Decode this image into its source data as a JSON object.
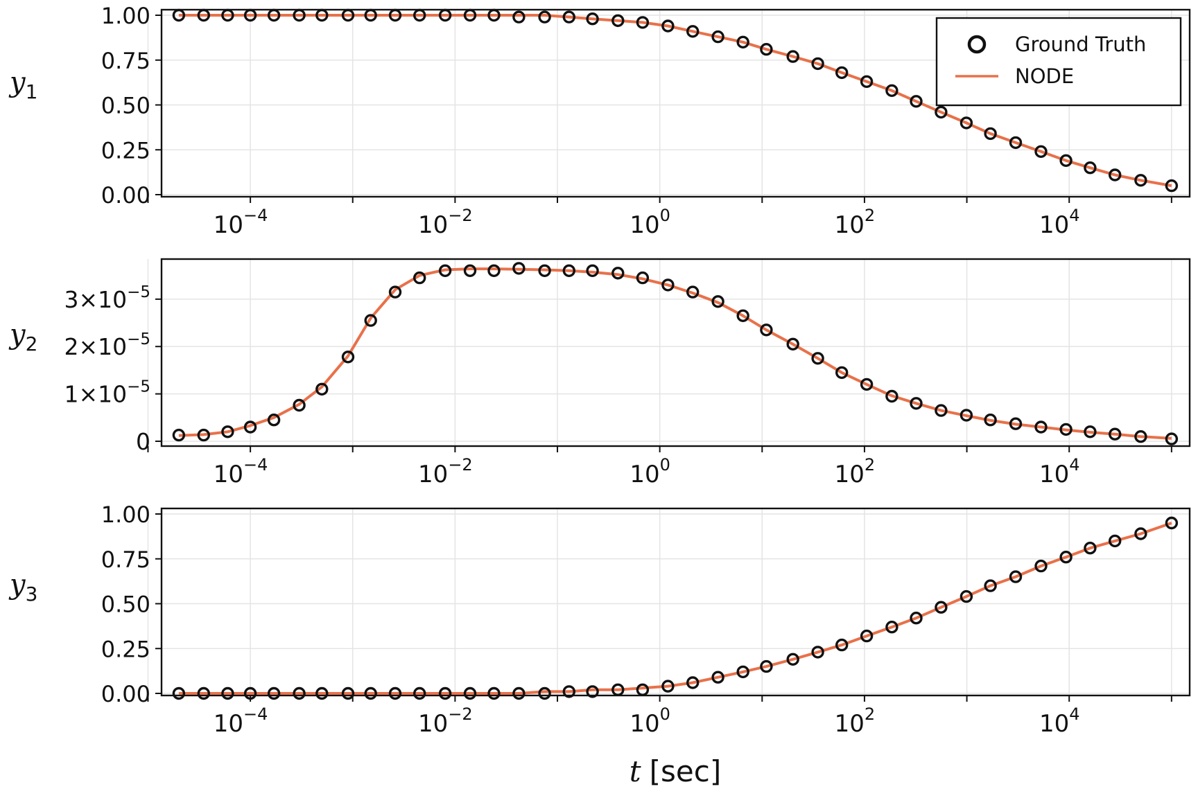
{
  "chart_data": [
    {
      "type": "scatter",
      "ylabel": "y",
      "ylabel_sub": "1",
      "x_scale": "log",
      "xlim": [
        1e-05,
        300000
      ],
      "ylim": [
        0,
        1
      ],
      "x_ticks": [
        {
          "base": "10",
          "exp": "−4"
        },
        {
          "base": "10",
          "exp": "−2"
        },
        {
          "base": "10",
          "exp": "0"
        },
        {
          "base": "10",
          "exp": "2"
        },
        {
          "base": "10",
          "exp": "4"
        }
      ],
      "y_ticks": [
        "1.00",
        "0.75",
        "0.50",
        "0.25",
        "0.00"
      ],
      "grid": true,
      "legend": {
        "placement": "top-right",
        "entries": [
          "Ground Truth",
          "NODE"
        ]
      },
      "x": [
        2e-05,
        3.5e-05,
        6e-05,
        0.0001,
        0.00017,
        0.0003,
        0.0005,
        0.0009,
        0.0015,
        0.0026,
        0.0045,
        0.008,
        0.014,
        0.024,
        0.042,
        0.075,
        0.13,
        0.22,
        0.39,
        0.68,
        1.2,
        2.1,
        3.7,
        6.5,
        11,
        20,
        35,
        60,
        105,
        185,
        320,
        560,
        990,
        1700,
        3000,
        5300,
        9300,
        16000,
        28000,
        50000,
        100000
      ],
      "series": [
        {
          "name": "Ground Truth",
          "marker": "circle",
          "values": [
            1.0,
            1.0,
            1.0,
            1.0,
            1.0,
            1.0,
            1.0,
            1.0,
            1.0,
            1.0,
            1.0,
            1.0,
            1.0,
            1.0,
            0.99,
            0.99,
            0.99,
            0.98,
            0.97,
            0.96,
            0.94,
            0.91,
            0.88,
            0.85,
            0.81,
            0.77,
            0.73,
            0.68,
            0.63,
            0.58,
            0.52,
            0.46,
            0.4,
            0.34,
            0.29,
            0.24,
            0.19,
            0.15,
            0.11,
            0.08,
            0.05
          ]
        },
        {
          "name": "NODE",
          "marker": "line",
          "values": [
            1.0,
            1.0,
            1.0,
            1.0,
            1.0,
            1.0,
            1.0,
            1.0,
            1.0,
            1.0,
            1.0,
            1.0,
            1.0,
            1.0,
            1.0,
            1.0,
            0.99,
            0.98,
            0.97,
            0.96,
            0.94,
            0.91,
            0.88,
            0.85,
            0.81,
            0.77,
            0.73,
            0.68,
            0.63,
            0.58,
            0.52,
            0.46,
            0.4,
            0.34,
            0.29,
            0.24,
            0.19,
            0.15,
            0.11,
            0.08,
            0.05
          ]
        }
      ]
    },
    {
      "type": "scatter",
      "ylabel": "y",
      "ylabel_sub": "2",
      "x_scale": "log",
      "xlim": [
        1e-05,
        300000
      ],
      "ylim": [
        0,
        3.7e-05
      ],
      "x_ticks": [
        {
          "base": "10",
          "exp": "−4"
        },
        {
          "base": "10",
          "exp": "−2"
        },
        {
          "base": "10",
          "exp": "0"
        },
        {
          "base": "10",
          "exp": "2"
        },
        {
          "base": "10",
          "exp": "4"
        }
      ],
      "y_ticks": [
        {
          "mant": "3×10",
          "exp": "−5"
        },
        {
          "mant": "2×10",
          "exp": "−5"
        },
        {
          "mant": "1×10",
          "exp": "−5"
        },
        {
          "mant": "0",
          "exp": ""
        }
      ],
      "grid": true,
      "x": [
        2e-05,
        3.5e-05,
        6e-05,
        0.0001,
        0.00017,
        0.0003,
        0.0005,
        0.0009,
        0.0015,
        0.0026,
        0.0045,
        0.008,
        0.014,
        0.024,
        0.042,
        0.075,
        0.13,
        0.22,
        0.39,
        0.68,
        1.2,
        2.1,
        3.7,
        6.5,
        11,
        20,
        35,
        60,
        105,
        185,
        320,
        560,
        990,
        1700,
        3000,
        5300,
        9300,
        16000,
        28000,
        50000,
        100000
      ],
      "series": [
        {
          "name": "Ground Truth",
          "marker": "circle",
          "values": [
            1.3e-06,
            1.3e-06,
            2e-06,
            3e-06,
            4.5e-06,
            7.6e-06,
            1.1e-05,
            1.78e-05,
            2.55e-05,
            3.15e-05,
            3.45e-05,
            3.6e-05,
            3.6e-05,
            3.6e-05,
            3.65e-05,
            3.6e-05,
            3.6e-05,
            3.6e-05,
            3.55e-05,
            3.45e-05,
            3.3e-05,
            3.15e-05,
            2.95e-05,
            2.65e-05,
            2.35e-05,
            2.05e-05,
            1.75e-05,
            1.45e-05,
            1.2e-05,
            9.5e-06,
            8e-06,
            6.5e-06,
            5.5e-06,
            4.5e-06,
            3.7e-06,
            3e-06,
            2.5e-06,
            2e-06,
            1.5e-06,
            1e-06,
            5e-07
          ]
        },
        {
          "name": "NODE",
          "marker": "line",
          "values": [
            1.2e-06,
            1.4e-06,
            2e-06,
            3.3e-06,
            5e-06,
            7.8e-06,
            1.15e-05,
            1.8e-05,
            2.6e-05,
            3.2e-05,
            3.5e-05,
            3.62e-05,
            3.64e-05,
            3.64e-05,
            3.63e-05,
            3.62e-05,
            3.6e-05,
            3.57e-05,
            3.52e-05,
            3.43e-05,
            3.3e-05,
            3.13e-05,
            2.93e-05,
            2.65e-05,
            2.35e-05,
            2.05e-05,
            1.75e-05,
            1.45e-05,
            1.2e-05,
            9.6e-06,
            8e-06,
            6.5e-06,
            5.4e-06,
            4.4e-06,
            3.6e-06,
            3e-06,
            2.4e-06,
            1.9e-06,
            1.5e-06,
            1e-06,
            6e-07
          ]
        }
      ]
    },
    {
      "type": "scatter",
      "ylabel": "y",
      "ylabel_sub": "3",
      "xlabel": "t",
      "xlabel_unit": "[sec]",
      "x_scale": "log",
      "xlim": [
        1e-05,
        300000
      ],
      "ylim": [
        0,
        1
      ],
      "x_ticks": [
        {
          "base": "10",
          "exp": "−4"
        },
        {
          "base": "10",
          "exp": "−2"
        },
        {
          "base": "10",
          "exp": "0"
        },
        {
          "base": "10",
          "exp": "2"
        },
        {
          "base": "10",
          "exp": "4"
        }
      ],
      "y_ticks": [
        "1.00",
        "0.75",
        "0.50",
        "0.25",
        "0.00"
      ],
      "grid": true,
      "x": [
        2e-05,
        3.5e-05,
        6e-05,
        0.0001,
        0.00017,
        0.0003,
        0.0005,
        0.0009,
        0.0015,
        0.0026,
        0.0045,
        0.008,
        0.014,
        0.024,
        0.042,
        0.075,
        0.13,
        0.22,
        0.39,
        0.68,
        1.2,
        2.1,
        3.7,
        6.5,
        11,
        20,
        35,
        60,
        105,
        185,
        320,
        560,
        990,
        1700,
        3000,
        5300,
        9300,
        16000,
        28000,
        50000,
        100000
      ],
      "series": [
        {
          "name": "Ground Truth",
          "marker": "circle",
          "values": [
            0,
            0,
            0,
            0,
            0,
            0,
            0,
            0,
            0,
            0,
            0,
            0,
            0,
            0,
            0,
            0,
            0.01,
            0.01,
            0.02,
            0.02,
            0.04,
            0.06,
            0.09,
            0.12,
            0.15,
            0.19,
            0.23,
            0.27,
            0.32,
            0.37,
            0.42,
            0.48,
            0.54,
            0.6,
            0.65,
            0.71,
            0.76,
            0.81,
            0.85,
            0.89,
            0.95
          ]
        },
        {
          "name": "NODE",
          "marker": "line",
          "values": [
            0,
            0,
            0,
            0,
            0,
            0,
            0,
            0,
            0,
            0,
            0,
            0,
            0,
            0,
            0,
            0.01,
            0.01,
            0.02,
            0.02,
            0.03,
            0.04,
            0.06,
            0.09,
            0.12,
            0.15,
            0.19,
            0.23,
            0.27,
            0.32,
            0.37,
            0.42,
            0.48,
            0.54,
            0.6,
            0.65,
            0.71,
            0.76,
            0.81,
            0.85,
            0.89,
            0.95
          ]
        }
      ]
    }
  ],
  "colors": {
    "node_line": "#e8714a",
    "markers": "#111111",
    "grid": "#e4e4e4",
    "axes": "#111111"
  },
  "icons": {
    "ground_truth_marker": "ring-marker-icon",
    "node_marker": "line-swatch-icon"
  }
}
